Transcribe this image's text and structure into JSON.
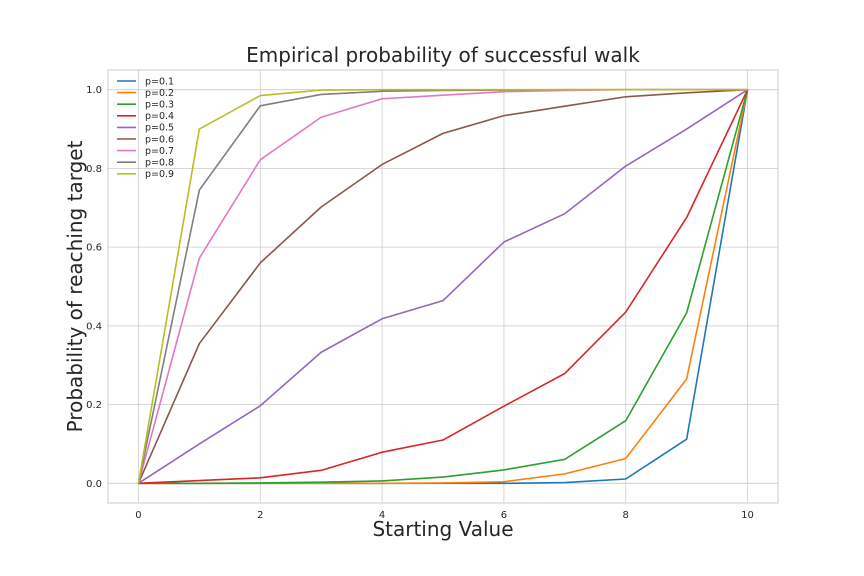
{
  "chart_data": {
    "type": "line",
    "title": "Empirical probability of successful walk",
    "xlabel": "Starting Value",
    "ylabel": "Probability of reaching target",
    "x": [
      0,
      1,
      2,
      3,
      4,
      5,
      6,
      7,
      8,
      9,
      10
    ],
    "xlim": [
      -0.5,
      10.5
    ],
    "ylim": [
      -0.05,
      1.05
    ],
    "xticks": [
      0,
      2,
      4,
      6,
      8,
      10
    ],
    "xtick_labels": [
      "0",
      "2",
      "4",
      "6",
      "8",
      "10"
    ],
    "yticks": [
      0.0,
      0.2,
      0.4,
      0.6,
      0.8,
      1.0
    ],
    "ytick_labels": [
      "0.0",
      "0.2",
      "0.4",
      "0.6",
      "0.8",
      "1.0"
    ],
    "grid": true,
    "legend_position": "top-left",
    "series": [
      {
        "name": "p=0.1",
        "color": "#1f77b4",
        "values": [
          0,
          0,
          0,
          0,
          0,
          0,
          0,
          0.002,
          0.011,
          0.112,
          1.0
        ]
      },
      {
        "name": "p=0.2",
        "color": "#ff7f0e",
        "values": [
          0,
          0,
          0,
          0,
          0,
          0.001,
          0.004,
          0.024,
          0.063,
          0.265,
          1.0
        ]
      },
      {
        "name": "p=0.3",
        "color": "#2ca02c",
        "values": [
          0,
          0,
          0.001,
          0.003,
          0.006,
          0.016,
          0.034,
          0.061,
          0.159,
          0.433,
          1.0
        ]
      },
      {
        "name": "p=0.4",
        "color": "#d62728",
        "values": [
          0,
          0.007,
          0.014,
          0.033,
          0.079,
          0.11,
          0.196,
          0.279,
          0.435,
          0.675,
          1.0
        ]
      },
      {
        "name": "p=0.5",
        "color": "#9467bd",
        "values": [
          0,
          0.1,
          0.197,
          0.333,
          0.418,
          0.464,
          0.613,
          0.685,
          0.806,
          0.9,
          1.0
        ]
      },
      {
        "name": "p=0.6",
        "color": "#8c564b",
        "values": [
          0,
          0.355,
          0.56,
          0.702,
          0.81,
          0.889,
          0.934,
          0.958,
          0.982,
          0.992,
          1.0
        ]
      },
      {
        "name": "p=0.7",
        "color": "#e377c2",
        "values": [
          0,
          0.572,
          0.822,
          0.93,
          0.977,
          0.986,
          0.995,
          0.998,
          1.0,
          1.0,
          1.0
        ]
      },
      {
        "name": "p=0.8",
        "color": "#7f7f7f",
        "values": [
          0,
          0.745,
          0.959,
          0.988,
          0.996,
          0.998,
          0.999,
          1.0,
          1.0,
          1.0,
          1.0
        ]
      },
      {
        "name": "p=0.9",
        "color": "#bcbd22",
        "values": [
          0,
          0.9,
          0.985,
          0.999,
          1.0,
          1.0,
          1.0,
          1.0,
          1.0,
          1.0,
          1.0
        ]
      }
    ]
  }
}
